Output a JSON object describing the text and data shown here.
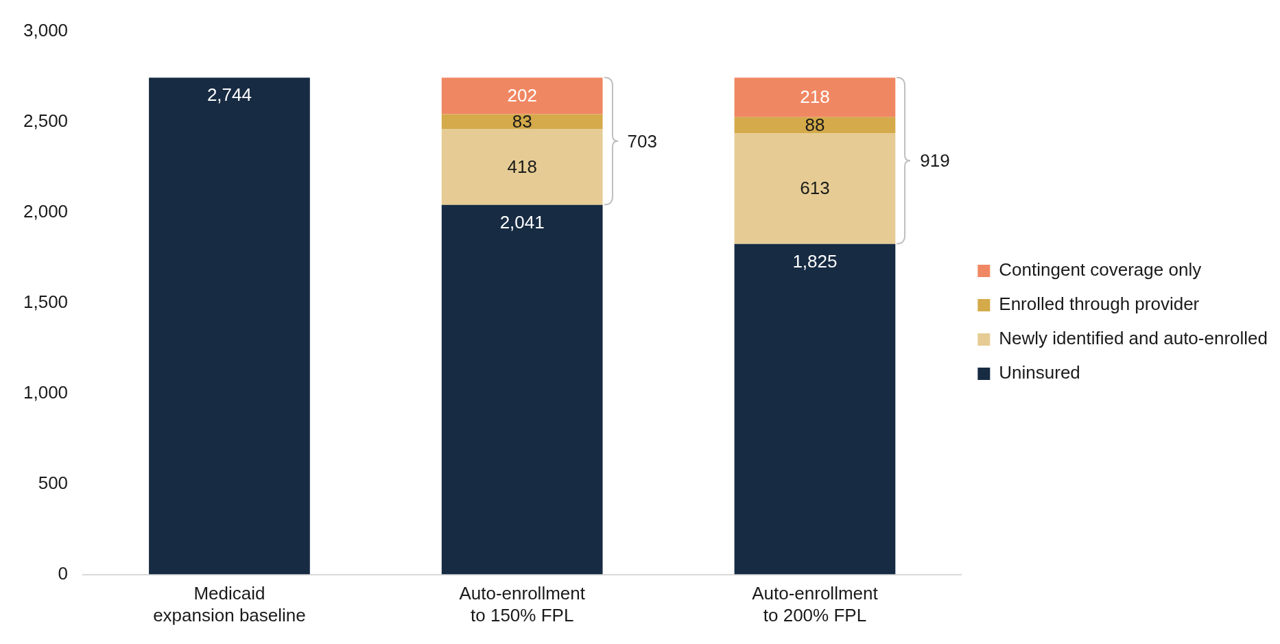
{
  "chart_data": {
    "type": "bar",
    "stacked": true,
    "categories": [
      "Medicaid expansion baseline",
      "Auto-enrollment to 150% FPL",
      "Auto-enrollment to 200% FPL"
    ],
    "series": [
      {
        "name": "Uninsured",
        "color": "#172b43",
        "values": [
          2744,
          2041,
          1825
        ],
        "value_labels": [
          "2,744",
          "2,041",
          "1,825"
        ]
      },
      {
        "name": "Newly identified and auto-enrolled",
        "color": "#e6cc94",
        "values": [
          null,
          418,
          613
        ],
        "value_labels": [
          null,
          "418",
          "613"
        ]
      },
      {
        "name": "Enrolled through provider",
        "color": "#d4aa4a",
        "values": [
          null,
          83,
          88
        ],
        "value_labels": [
          null,
          "83",
          "88"
        ]
      },
      {
        "name": "Contingent coverage only",
        "color": "#f08763",
        "values": [
          null,
          202,
          218
        ],
        "value_labels": [
          null,
          "202",
          "218"
        ]
      }
    ],
    "ylim": [
      0,
      3000
    ],
    "yticks": [
      {
        "value": 0,
        "label": "0"
      },
      {
        "value": 500,
        "label": "500"
      },
      {
        "value": 1000,
        "label": "1,000"
      },
      {
        "value": 1500,
        "label": "1,500"
      },
      {
        "value": 2000,
        "label": "2,000"
      },
      {
        "value": 2500,
        "label": "2,500"
      },
      {
        "value": 3000,
        "label": "3,000"
      }
    ],
    "grid": false,
    "legend": "right",
    "annotations": [
      "703",
      "919"
    ]
  }
}
